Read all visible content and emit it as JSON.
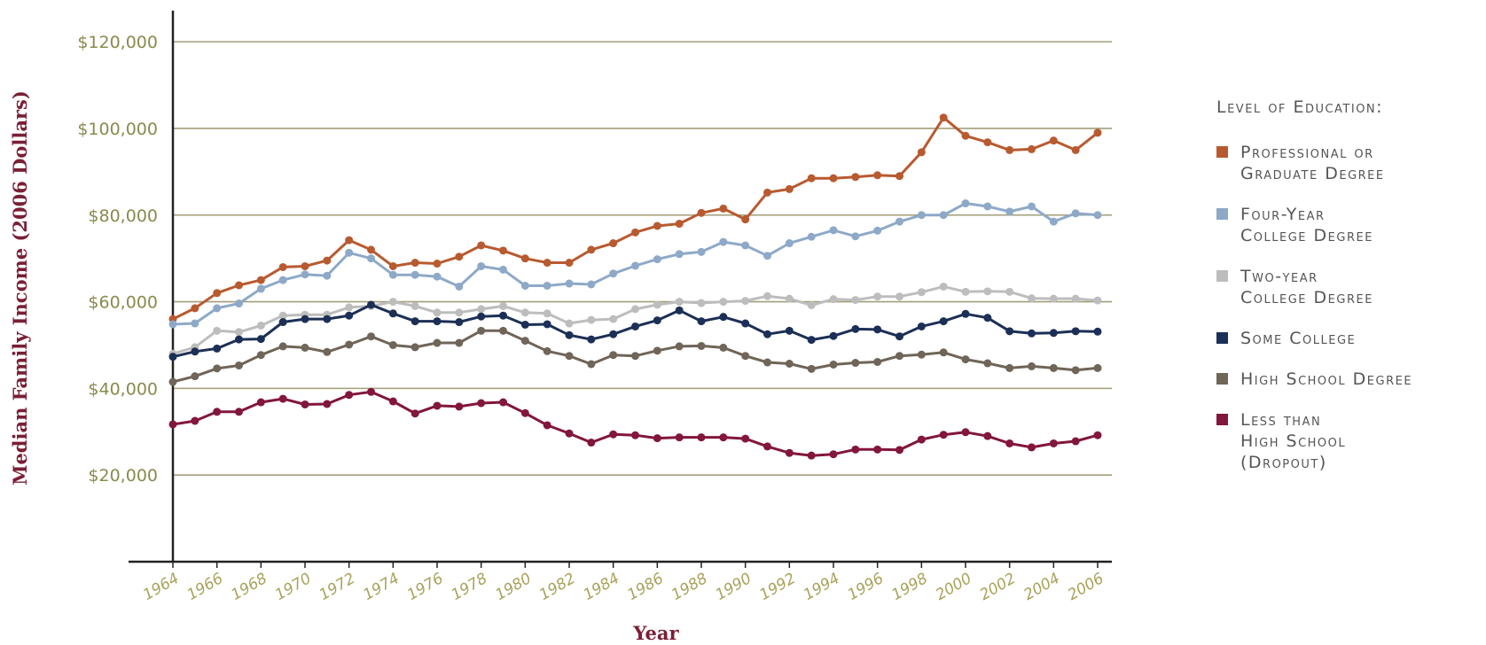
{
  "chart_data": {
    "type": "line",
    "title": "",
    "xlabel": "Year",
    "ylabel": "Median Family Income (2006 Dollars)",
    "x": [
      1964,
      1965,
      1966,
      1967,
      1968,
      1969,
      1970,
      1971,
      1972,
      1973,
      1974,
      1975,
      1976,
      1977,
      1978,
      1979,
      1980,
      1981,
      1982,
      1983,
      1984,
      1985,
      1986,
      1987,
      1988,
      1989,
      1990,
      1991,
      1992,
      1993,
      1994,
      1995,
      1996,
      1997,
      1998,
      1999,
      2000,
      2001,
      2002,
      2003,
      2004,
      2005,
      2006
    ],
    "x_tick_labels": [
      "1964",
      "1966",
      "1968",
      "1970",
      "1972",
      "1974",
      "1976",
      "1978",
      "1980",
      "1982",
      "1984",
      "1986",
      "1988",
      "1990",
      "1992",
      "1994",
      "1996",
      "1998",
      "2000",
      "2002",
      "2004",
      "2006"
    ],
    "y_tick_labels": [
      "$20,000",
      "$40,000",
      "$60,000",
      "$80,000",
      "$100,000",
      "$120,000"
    ],
    "y_ticks": [
      20000,
      40000,
      60000,
      80000,
      100000,
      120000
    ],
    "ylim": [
      0,
      128000
    ],
    "xlim": [
      1964,
      2006
    ],
    "grid": "horizontal",
    "legend_position": "right",
    "legend_title": "Level of Education:",
    "series": [
      {
        "name": "Professional or\nGraduate Degree",
        "color": "#b85a30",
        "values": [
          56000,
          58500,
          62000,
          63800,
          65000,
          68000,
          68200,
          69500,
          74200,
          72000,
          68200,
          69000,
          68800,
          70400,
          73000,
          71800,
          70000,
          69000,
          69000,
          72000,
          73500,
          76000,
          77500,
          78000,
          80500,
          81500,
          79000,
          85200,
          86000,
          88500,
          88500,
          88800,
          89200,
          89000,
          94500,
          102500,
          98300,
          96800,
          95000,
          95200,
          97200,
          95000,
          99000
        ]
      },
      {
        "name": "Four-Year\nCollege Degree",
        "color": "#8ea9c8",
        "values": [
          54800,
          55000,
          58500,
          59600,
          63000,
          65000,
          66300,
          66000,
          71300,
          70000,
          66200,
          66200,
          65800,
          63500,
          68200,
          67400,
          63700,
          63700,
          64200,
          64000,
          66500,
          68300,
          69800,
          71000,
          71500,
          73800,
          73000,
          70600,
          73500,
          75000,
          76500,
          75100,
          76400,
          78500,
          80000,
          80000,
          82700,
          82000,
          80800,
          82000,
          78500,
          80400,
          80000
        ]
      },
      {
        "name": "Two-year\nCollege Degree",
        "color": "#bdbdbd",
        "values": [
          48000,
          49500,
          53300,
          53000,
          54500,
          56800,
          57000,
          57000,
          58700,
          59000,
          60000,
          59000,
          57500,
          57500,
          58300,
          59000,
          57500,
          57300,
          55000,
          55800,
          56000,
          58300,
          59300,
          60000,
          59700,
          60000,
          60200,
          61300,
          60700,
          59200,
          60600,
          60400,
          61200,
          61200,
          62200,
          63500,
          62300,
          62400,
          62300,
          60800,
          60700,
          60700,
          60300
        ]
      },
      {
        "name": "Some College",
        "color": "#1c2f56",
        "values": [
          47300,
          48500,
          49200,
          51300,
          51400,
          55300,
          56000,
          56000,
          56800,
          59300,
          57300,
          55500,
          55500,
          55300,
          56600,
          56800,
          54700,
          54800,
          52300,
          51300,
          52500,
          54300,
          55700,
          58000,
          55500,
          56500,
          55000,
          52500,
          53300,
          51200,
          52100,
          53700,
          53600,
          52000,
          54300,
          55500,
          57200,
          56300,
          53200,
          52700,
          52800,
          53200,
          53100
        ]
      },
      {
        "name": "High School Degree",
        "color": "#6f6558",
        "values": [
          41500,
          42800,
          44600,
          45300,
          47700,
          49700,
          49400,
          48400,
          50100,
          52000,
          50000,
          49500,
          50500,
          50500,
          53300,
          53300,
          51000,
          48600,
          47500,
          45600,
          47700,
          47500,
          48700,
          49700,
          49800,
          49400,
          47500,
          46000,
          45700,
          44500,
          45500,
          45900,
          46100,
          47500,
          47800,
          48300,
          46700,
          45800,
          44700,
          45100,
          44700,
          44200,
          44700
        ]
      },
      {
        "name": "Less than\nHigh School\n(Dropout)",
        "color": "#82163d",
        "values": [
          31700,
          32500,
          34600,
          34600,
          36800,
          37600,
          36300,
          36400,
          38500,
          39200,
          37000,
          34200,
          36000,
          35800,
          36600,
          36800,
          34300,
          31500,
          29600,
          27500,
          29400,
          29200,
          28500,
          28700,
          28700,
          28700,
          28400,
          26600,
          25100,
          24500,
          24800,
          25900,
          25900,
          25800,
          28200,
          29300,
          29900,
          29000,
          27300,
          26400,
          27300,
          27800,
          29200
        ]
      }
    ]
  }
}
